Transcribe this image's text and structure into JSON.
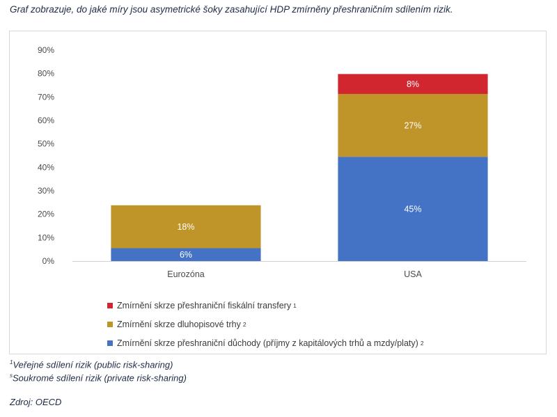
{
  "caption": "Graf zobrazuje, do jaké míry jsou asymetrické šoky zasahující HDP zmírněny přeshraničním sdílením rizik.",
  "colors": {
    "fiscal": "#d1262f",
    "bonds": "#bf9429",
    "income": "#4472c4"
  },
  "chart_data": {
    "type": "bar",
    "stacked": true,
    "categories": [
      "Eurozóna",
      "USA"
    ],
    "series": [
      {
        "name": "Zmírnění skrze přeshraniční důchody (příjmy z kapitálových trhů a mzdy/platy)",
        "values": [
          6,
          45
        ],
        "labels": [
          "6%",
          "45%"
        ],
        "color": "#4472c4"
      },
      {
        "name": "Zmírnění skrze dluhopisové trhy",
        "values": [
          18,
          27
        ],
        "labels": [
          "18%",
          "27%"
        ],
        "color": "#bf9429"
      },
      {
        "name": "Zmírnění skrze přeshraniční fiskální transfery",
        "values": [
          null,
          8
        ],
        "labels": [
          "",
          "8%"
        ],
        "color": "#d1262f"
      }
    ],
    "segment_bounds": [
      [
        [
          0,
          5.5
        ],
        [
          5.5,
          23.8
        ],
        [
          23.8,
          23.8
        ]
      ],
      [
        [
          0,
          44.5
        ],
        [
          44.5,
          71.3
        ],
        [
          71.3,
          79.8
        ]
      ]
    ],
    "ylim": [
      0,
      90
    ],
    "yticks": [
      0,
      10,
      20,
      30,
      40,
      50,
      60,
      70,
      80,
      90
    ],
    "ytick_labels": [
      "0%",
      "10%",
      "20%",
      "30%",
      "40%",
      "50%",
      "60%",
      "70%",
      "80%",
      "90%"
    ],
    "grid": false,
    "legend_position": "bottom"
  },
  "legend": [
    {
      "label": "Zmírnění skrze přeshraniční fiskální transfery",
      "sup": "1",
      "color": "#d1262f"
    },
    {
      "label": "Zmírnění skrze dluhopisové trhy",
      "sup": "2",
      "color": "#bf9429"
    },
    {
      "label": "Zmírnění skrze přeshraniční důchody (příjmy z kapitálových trhů a mzdy/platy)",
      "sup": "2",
      "color": "#4472c4"
    }
  ],
  "footnotes": [
    {
      "mark": "1",
      "text": "Veřejné sdílení rizik (public risk-sharing)"
    },
    {
      "mark": "s",
      "text": "Soukromé sdílení rizik (private risk-sharing)"
    }
  ],
  "source": "Zdroj: OECD"
}
